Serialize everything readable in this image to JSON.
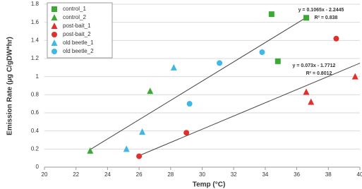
{
  "chart_data": {
    "type": "scatter",
    "xlabel": "Temp (°C)",
    "ylabel": "Emission Rate (µg C/gDW*hr)",
    "xlim": [
      20,
      40
    ],
    "xticks": [
      20,
      22,
      24,
      26,
      28,
      30,
      32,
      34,
      36,
      38,
      40
    ],
    "ylim": [
      0,
      1.8
    ],
    "yticks": [
      0,
      0.2,
      0.4,
      0.6,
      0.8,
      1,
      1.2,
      1.4,
      1.6,
      1.8
    ],
    "grid": true,
    "legend": "top-left",
    "series": [
      {
        "name": "control_1",
        "color": "#3aaa35",
        "marker": "square",
        "x": [
          34.4,
          36.6,
          34.8
        ],
        "values": [
          1.69,
          1.65,
          1.17
        ]
      },
      {
        "name": "control_2",
        "color": "#3aaa35",
        "marker": "triangle",
        "x": [
          22.9,
          26.7
        ],
        "values": [
          0.18,
          0.84
        ]
      },
      {
        "name": "post-bait_1",
        "color": "#e0302c",
        "marker": "triangle",
        "x": [
          36.6,
          36.9,
          39.7
        ],
        "values": [
          0.83,
          0.72,
          1.0
        ]
      },
      {
        "name": "post-bait_2",
        "color": "#e0302c",
        "marker": "circle",
        "x": [
          26.0,
          29.0,
          38.5
        ],
        "values": [
          0.12,
          0.38,
          1.42
        ]
      },
      {
        "name": "old beetle_1",
        "color": "#3db8e8",
        "marker": "triangle",
        "x": [
          25.2,
          26.2,
          28.2
        ],
        "values": [
          0.2,
          0.39,
          1.1
        ]
      },
      {
        "name": "old beetle_2",
        "color": "#3db8e8",
        "marker": "circle",
        "x": [
          29.2,
          31.1,
          33.8
        ],
        "values": [
          0.7,
          1.15,
          1.27
        ]
      }
    ],
    "trendlines": [
      {
        "equation": "y = 0.1065x - 2.2445",
        "r2": "R² = 0.838",
        "slope": 0.1065,
        "intercept": -2.2445,
        "xrange": [
          22.9,
          36.6
        ]
      },
      {
        "equation": "y = 0.073x - 1.7712",
        "r2": "R² = 0.8012",
        "slope": 0.073,
        "intercept": -1.7712,
        "xrange": [
          26,
          40
        ]
      }
    ]
  }
}
